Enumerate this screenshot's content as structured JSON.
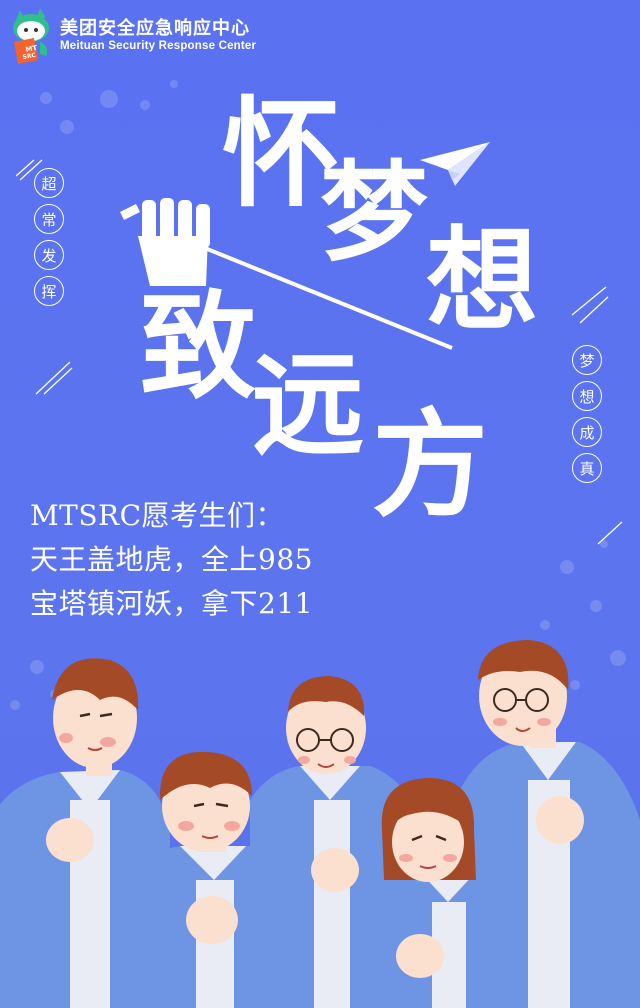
{
  "header": {
    "org_name_cn": "美团安全应急响应中心",
    "org_name_en": "Meituan Security Response Center",
    "logo_badge": "MT SRC"
  },
  "side_left": [
    "超",
    "常",
    "发",
    "挥"
  ],
  "side_right": [
    "梦",
    "想",
    "成",
    "真"
  ],
  "title": {
    "chars": [
      "怀",
      "梦",
      "想",
      "致",
      "远",
      "方"
    ]
  },
  "slogan": {
    "line1": "MTSRC愿考生们：",
    "line2": "天王盖地虎，全上985",
    "line3": "宝塔镇河妖，拿下211"
  },
  "colors": {
    "background": "#5b73f0",
    "uniform_blue": "#6e95e3",
    "uniform_white": "#e9ecf4",
    "hair": "#a44a26",
    "skin": "#fbe0cf"
  }
}
